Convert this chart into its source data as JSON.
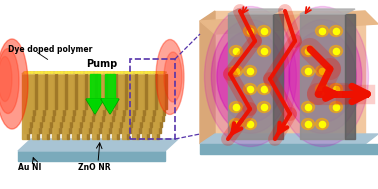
{
  "bg_color": "#ffffff",
  "left_panel": {
    "base_top_color": "#a8c4d4",
    "base_front_color": "#7aaabb",
    "nanorod_color": "#c8a040",
    "nanorod_top_color": "#e0c060",
    "nanorod_side_color": "#a07828",
    "dot_color": "#f8e840",
    "pump_arrow_color": "#00dd00",
    "pump_shadow_color": "#009900",
    "pump_text": "Pump",
    "label_dye": "Dye doped polymer",
    "label_au": "Au NI",
    "label_zno": "ZnO NR",
    "red_color": "#ff2200"
  },
  "right_panel": {
    "wall_back_color": "#f2c8a0",
    "wall_left_color": "#daa878",
    "wall_top_color": "#e8b888",
    "base_top_color": "#a8c4d4",
    "base_front_color": "#7aaabb",
    "pillar_front_color": "#909090",
    "pillar_side_color": "#606060",
    "pillar_top_color": "#b0b0b0",
    "plasma_color": "#cc00bb",
    "dot_color": "#ffff00",
    "dot_glow_color": "#ffaa00",
    "red_color": "#ee1100"
  },
  "connector_color": "#5533aa",
  "figsize": [
    3.78,
    1.89
  ],
  "dpi": 100
}
